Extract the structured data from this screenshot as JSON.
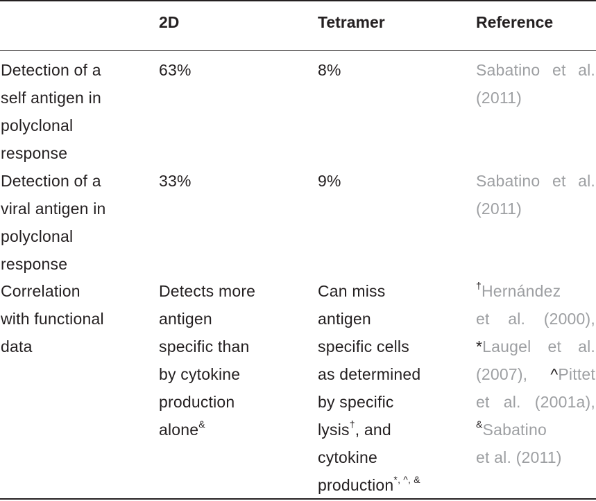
{
  "table": {
    "headers": [
      "",
      "2D",
      "Tetramer",
      "Reference"
    ],
    "rows": [
      {
        "feature": [
          "Detection of a",
          "self antigen in",
          "polyclonal",
          "response"
        ],
        "twoD": "63%",
        "tetramer": "8%",
        "reference": [
          "Sabatino et al.",
          "(2011)"
        ]
      },
      {
        "feature": [
          "Detection of a",
          "viral antigen in",
          "polyclonal",
          "response"
        ],
        "twoD": "33%",
        "tetramer": "9%",
        "reference": [
          "Sabatino et al.",
          "(2011)"
        ]
      },
      {
        "feature": [
          "Correlation",
          "with functional",
          "data"
        ],
        "twoD": [
          "Detects more",
          "antigen",
          "specific than",
          "by cytokine",
          "production",
          "alone"
        ],
        "twoD_mark": "&",
        "tetramer": [
          "Can miss",
          "antigen",
          "specific cells",
          "as determined",
          "by specific",
          "lysis",
          ", and",
          "cytokine",
          "production"
        ],
        "tetramer_marks": {
          "lysis": "†",
          "production": "*, ^, &"
        },
        "reference": {
          "r1_mark": "†",
          "r1_name": "Hernández",
          "r1_rest": "et al. (2000),",
          "r2_mark": "*",
          "r2_name": "Laugel et al.",
          "r2_rest_a": "(2007),",
          "r3_mark": "^",
          "r3_name": "Pittet",
          "r3_rest": "et al. (2001a),",
          "r4_mark": "&",
          "r4_name": "Sabatino",
          "r4_rest": "et al. (2011)"
        }
      }
    ]
  }
}
